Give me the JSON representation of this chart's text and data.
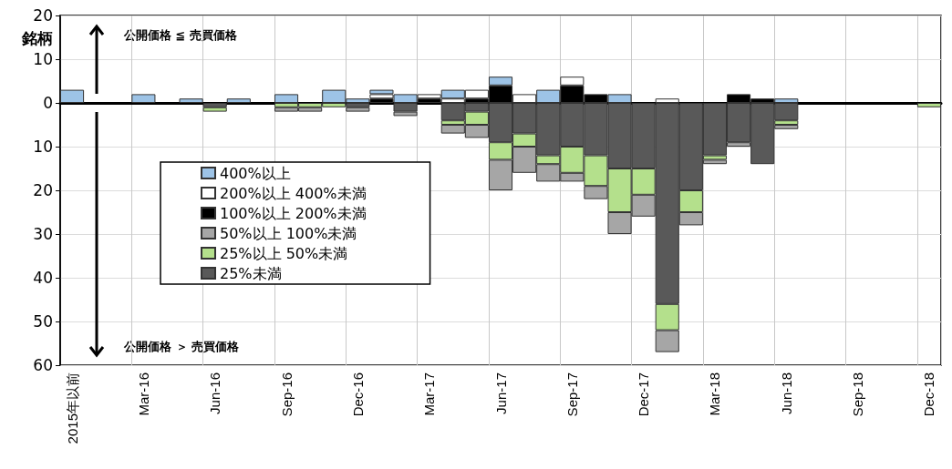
{
  "chart_data": {
    "type": "bar",
    "stacked": true,
    "ylabel": "銘柄",
    "categories": [
      "2015年以前",
      null,
      null,
      "Mar-16",
      null,
      null,
      "Jun-16",
      null,
      null,
      "Sep-16",
      null,
      null,
      "Dec-16",
      null,
      null,
      "Mar-17",
      null,
      null,
      "Jun-17",
      null,
      null,
      "Sep-17",
      null,
      null,
      "Dec-17",
      null,
      null,
      "Mar-18",
      null,
      null,
      "Jun-18",
      null,
      null,
      "Sep-18",
      null,
      null,
      "Dec-18"
    ],
    "series": [
      {
        "name": "100%以上 200%未満",
        "color": "#000000",
        "values": [
          null,
          null,
          null,
          null,
          null,
          null,
          null,
          null,
          null,
          null,
          null,
          null,
          null,
          1,
          null,
          1,
          null,
          1,
          4,
          null,
          null,
          4,
          2,
          null,
          null,
          null,
          null,
          null,
          2,
          1,
          null,
          null,
          null,
          null,
          null,
          null,
          null
        ]
      },
      {
        "name": "200%以上 400%未満",
        "color": "#ffffff",
        "values": [
          null,
          null,
          null,
          null,
          null,
          null,
          null,
          null,
          null,
          null,
          null,
          null,
          null,
          1,
          null,
          1,
          1,
          2,
          null,
          2,
          null,
          2,
          null,
          null,
          null,
          1,
          null,
          null,
          null,
          null,
          null,
          null,
          null,
          null,
          null,
          null,
          null
        ]
      },
      {
        "name": "400%以上",
        "color": "#9dc3e6",
        "values": [
          3,
          null,
          null,
          2,
          null,
          1,
          null,
          1,
          null,
          2,
          null,
          3,
          1,
          1,
          2,
          null,
          2,
          null,
          2,
          null,
          3,
          null,
          null,
          2,
          null,
          null,
          null,
          null,
          null,
          null,
          1,
          null,
          null,
          null,
          null,
          null,
          null
        ]
      },
      {
        "name": "25%未満",
        "color": "#595959",
        "values": [
          null,
          null,
          null,
          null,
          null,
          null,
          -1,
          null,
          null,
          null,
          null,
          null,
          -1,
          null,
          -2,
          null,
          -4,
          -2,
          -9,
          -7,
          -12,
          -10,
          -12,
          -15,
          -15,
          -46,
          -20,
          -12,
          -9,
          -14,
          -4,
          null,
          null,
          null,
          null,
          null,
          null
        ]
      },
      {
        "name": "25%以上 50%未満",
        "color": "#b4e08c",
        "values": [
          null,
          null,
          null,
          null,
          null,
          null,
          -1,
          null,
          null,
          -1,
          -1,
          -1,
          null,
          null,
          null,
          null,
          -1,
          -3,
          -4,
          -3,
          -2,
          -6,
          -7,
          -10,
          -6,
          -6,
          -5,
          -1,
          null,
          null,
          -1,
          null,
          null,
          null,
          null,
          null,
          -1
        ]
      },
      {
        "name": "50%以上 100%未満",
        "color": "#a6a6a6",
        "values": [
          null,
          null,
          null,
          null,
          null,
          null,
          null,
          null,
          null,
          -1,
          -1,
          null,
          -1,
          null,
          -1,
          null,
          -2,
          -3,
          -7,
          -6,
          -4,
          -2,
          -3,
          -5,
          -5,
          -5,
          -3,
          -1,
          -1,
          null,
          -1,
          null,
          null,
          null,
          null,
          null,
          null
        ]
      }
    ],
    "ylim": [
      -60,
      20
    ],
    "yticks": [
      {
        "value": -60,
        "label": "60"
      },
      {
        "value": -50,
        "label": "50"
      },
      {
        "value": -40,
        "label": "40"
      },
      {
        "value": -30,
        "label": "30"
      },
      {
        "value": -20,
        "label": "20"
      },
      {
        "value": -10,
        "label": "10"
      },
      0,
      10,
      20
    ],
    "grid": true,
    "legend": "left",
    "annotations": [
      "公開価格 ≦ 売買価格",
      "公開価格 ＞ 売買価格"
    ]
  }
}
